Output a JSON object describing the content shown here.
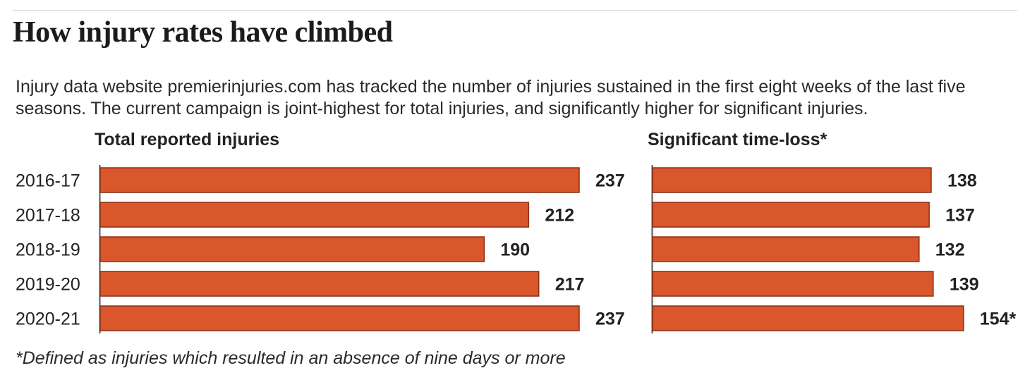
{
  "title": "How injury rates have climbed",
  "subtitle": "Injury data website premierinjuries.com has tracked the number of injuries sustained in the first eight weeks of the last five seasons. The current campaign is joint-highest for total injuries, and significantly higher for significant injuries.",
  "footnote": "*Defined as injuries which resulted in an absence of nine days or more",
  "colors": {
    "bar": "#d9572b",
    "bar_edge": "#8a2f14",
    "axis": "#555555",
    "text": "#222222"
  },
  "chart_data": [
    {
      "type": "bar",
      "orientation": "horizontal",
      "title": "Total reported injuries",
      "categories": [
        "2016-17",
        "2017-18",
        "2018-19",
        "2019-20",
        "2020-21"
      ],
      "values": [
        237,
        212,
        190,
        217,
        237
      ],
      "value_labels": [
        "237",
        "212",
        "190",
        "217",
        "237"
      ]
    },
    {
      "type": "bar",
      "orientation": "horizontal",
      "title": "Significant time-loss*",
      "categories": [
        "2016-17",
        "2017-18",
        "2018-19",
        "2019-20",
        "2020-21"
      ],
      "values": [
        138,
        137,
        132,
        139,
        154
      ],
      "value_labels": [
        "138",
        "137",
        "132",
        "139",
        "154*"
      ]
    }
  ]
}
